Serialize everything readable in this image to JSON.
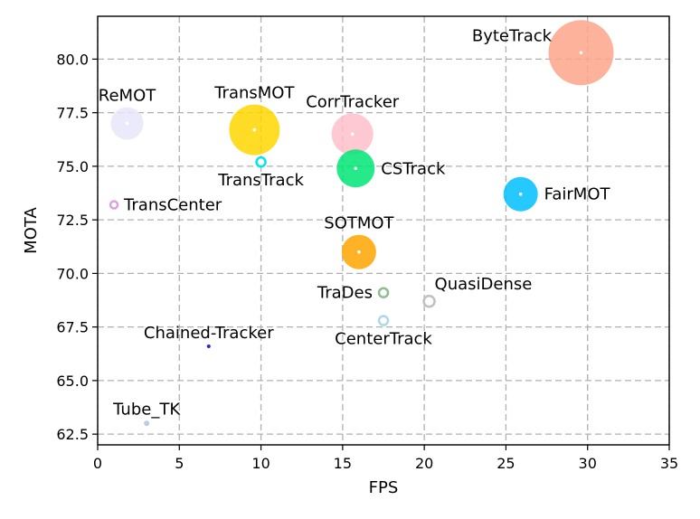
{
  "chart_data": {
    "type": "scatter",
    "title": "",
    "xlabel": "FPS",
    "ylabel": "MOTA",
    "xlim": [
      0,
      35
    ],
    "ylim": [
      62,
      82
    ],
    "grid": true,
    "x_ticks": [
      0,
      5,
      10,
      15,
      20,
      25,
      30,
      35
    ],
    "x_tick_labels": [
      "0",
      "5",
      "10",
      "15",
      "20",
      "25",
      "30",
      "35"
    ],
    "y_ticks": [
      62.5,
      65.0,
      67.5,
      70.0,
      72.5,
      75.0,
      77.5,
      80.0
    ],
    "y_tick_labels": [
      "62.5",
      "65.0",
      "67.5",
      "70.0",
      "72.5",
      "75.0",
      "77.5",
      "80.0"
    ],
    "points": [
      {
        "name": "ByteTrack",
        "x": 29.6,
        "y": 80.3,
        "size": 36,
        "color": "#fca58a",
        "filled": true,
        "label_pos": "left"
      },
      {
        "name": "ReMOT",
        "x": 1.8,
        "y": 77.0,
        "size": 18,
        "color": "#e6e6fa",
        "filled": true,
        "label_pos": "above"
      },
      {
        "name": "TransMOT",
        "x": 9.6,
        "y": 76.7,
        "size": 28,
        "color": "#ffd700",
        "filled": true,
        "label_pos": "above"
      },
      {
        "name": "CorrTracker",
        "x": 15.6,
        "y": 76.5,
        "size": 23,
        "color": "#ffc0cb",
        "filled": true,
        "label_pos": "above"
      },
      {
        "name": "TransTrack",
        "x": 10.0,
        "y": 75.2,
        "size": 5,
        "color": "#00e5ee",
        "filled": false,
        "label_pos": "below"
      },
      {
        "name": "CSTrack",
        "x": 15.8,
        "y": 74.9,
        "size": 21,
        "color": "#00e676",
        "filled": true,
        "label_pos": "right"
      },
      {
        "name": "FairMOT",
        "x": 25.9,
        "y": 73.7,
        "size": 19,
        "color": "#00bfff",
        "filled": true,
        "label_pos": "right"
      },
      {
        "name": "TransCenter",
        "x": 1.0,
        "y": 73.2,
        "size": 4,
        "color": "#dda0dd",
        "filled": false,
        "label_pos": "right"
      },
      {
        "name": "SOTMOT",
        "x": 16.0,
        "y": 71.0,
        "size": 19,
        "color": "#ffa500",
        "filled": true,
        "label_pos": "above"
      },
      {
        "name": "TraDes",
        "x": 17.5,
        "y": 69.1,
        "size": 5,
        "color": "#8fbc8f",
        "filled": false,
        "label_pos": "left"
      },
      {
        "name": "QuasiDense",
        "x": 20.3,
        "y": 68.7,
        "size": 6,
        "color": "#c0c0c0",
        "filled": false,
        "label_pos": "above-right"
      },
      {
        "name": "CenterTrack",
        "x": 17.5,
        "y": 67.8,
        "size": 5,
        "color": "#add8e6",
        "filled": false,
        "label_pos": "below"
      },
      {
        "name": "Chained-Tracker",
        "x": 6.8,
        "y": 66.6,
        "size": 2,
        "color": "#0000cd",
        "filled": true,
        "label_pos": "above"
      },
      {
        "name": "Tube_TK",
        "x": 3.0,
        "y": 63.0,
        "size": 3,
        "color": "#b0c4de",
        "filled": true,
        "label_pos": "above"
      }
    ]
  }
}
